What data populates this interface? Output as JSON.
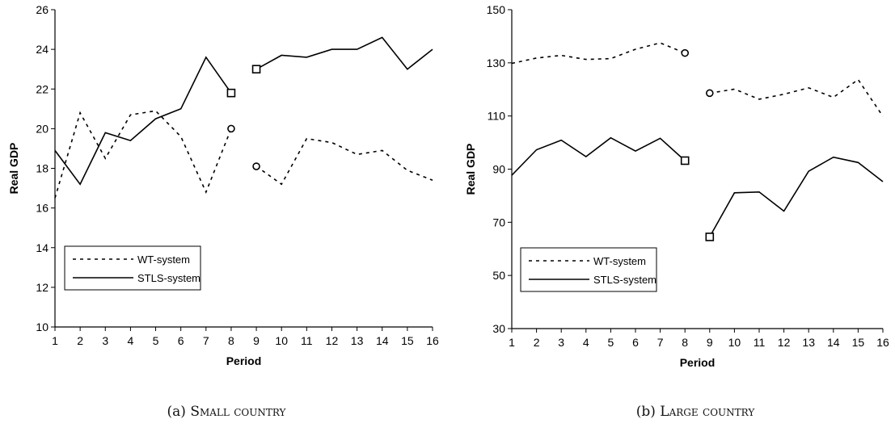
{
  "chart_data": [
    {
      "type": "line",
      "caption_prefix": "(a)",
      "caption_text": "Small country",
      "xlabel": "Period",
      "ylabel": "Real GDP",
      "x": [
        1,
        2,
        3,
        4,
        5,
        6,
        7,
        8,
        9,
        10,
        11,
        12,
        13,
        14,
        15,
        16
      ],
      "xlim": [
        1,
        16
      ],
      "ylim": [
        10,
        26
      ],
      "yticks": [
        10,
        12,
        14,
        16,
        18,
        20,
        22,
        24,
        26
      ],
      "grid": false,
      "legend": "lower-left",
      "series": [
        {
          "name": "WT-system",
          "style": "dashed",
          "color": "#000000",
          "segments": [
            {
              "x": [
                1,
                2,
                3,
                4,
                5,
                6,
                7,
                8
              ],
              "y": [
                16.5,
                20.8,
                18.5,
                20.7,
                20.9,
                19.6,
                16.8,
                20.0
              ]
            },
            {
              "x": [
                9,
                10,
                11,
                12,
                13,
                14,
                15,
                16
              ],
              "y": [
                18.1,
                17.2,
                19.5,
                19.3,
                18.7,
                18.9,
                17.9,
                17.4
              ]
            }
          ],
          "markers": [
            {
              "x": 8,
              "y": 20.0,
              "shape": "circle"
            },
            {
              "x": 9,
              "y": 18.1,
              "shape": "circle"
            }
          ]
        },
        {
          "name": "STLS-system",
          "style": "solid",
          "color": "#000000",
          "segments": [
            {
              "x": [
                1,
                2,
                3,
                4,
                5,
                6,
                7,
                8
              ],
              "y": [
                18.9,
                17.2,
                19.8,
                19.4,
                20.5,
                21.0,
                23.6,
                21.8
              ]
            },
            {
              "x": [
                9,
                10,
                11,
                12,
                13,
                14,
                15,
                16
              ],
              "y": [
                23.0,
                23.7,
                23.6,
                24.0,
                24.0,
                24.6,
                23.0,
                24.0
              ]
            }
          ],
          "markers": [
            {
              "x": 8,
              "y": 21.8,
              "shape": "square"
            },
            {
              "x": 9,
              "y": 23.0,
              "shape": "square"
            }
          ]
        }
      ]
    },
    {
      "type": "line",
      "caption_prefix": "(b)",
      "caption_text": "Large country",
      "xlabel": "Period",
      "ylabel": "Real GDP",
      "x": [
        1,
        2,
        3,
        4,
        5,
        6,
        7,
        8,
        9,
        10,
        11,
        12,
        13,
        14,
        15,
        16
      ],
      "xlim": [
        1,
        16
      ],
      "ylim": [
        30,
        150
      ],
      "yticks": [
        30,
        50,
        70,
        90,
        110,
        130,
        150
      ],
      "grid": false,
      "legend": "lower-left",
      "series": [
        {
          "name": "WT-system",
          "style": "dashed",
          "color": "#000000",
          "segments": [
            {
              "x": [
                1,
                2,
                3,
                4,
                5,
                6,
                7,
                8
              ],
              "y": [
                129.8,
                131.8,
                132.8,
                131.3,
                131.6,
                135.1,
                137.5,
                133.7
              ]
            },
            {
              "x": [
                9,
                10,
                11,
                12,
                13,
                14,
                15,
                16
              ],
              "y": [
                118.6,
                120.1,
                116.3,
                118.2,
                120.6,
                117.0,
                123.7,
                109.9
              ]
            }
          ],
          "markers": [
            {
              "x": 8,
              "y": 133.7,
              "shape": "circle"
            },
            {
              "x": 9,
              "y": 118.6,
              "shape": "circle"
            }
          ]
        },
        {
          "name": "STLS-system",
          "style": "solid",
          "color": "#000000",
          "segments": [
            {
              "x": [
                1,
                2,
                3,
                4,
                5,
                6,
                7,
                8
              ],
              "y": [
                87.7,
                97.3,
                100.9,
                94.7,
                101.8,
                96.8,
                101.6,
                93.2
              ]
            },
            {
              "x": [
                9,
                10,
                11,
                12,
                13,
                14,
                15,
                16
              ],
              "y": [
                64.5,
                81.1,
                81.4,
                74.2,
                89.2,
                94.5,
                92.5,
                85.3
              ]
            }
          ],
          "markers": [
            {
              "x": 8,
              "y": 93.2,
              "shape": "square"
            },
            {
              "x": 9,
              "y": 64.5,
              "shape": "square"
            }
          ]
        }
      ]
    }
  ]
}
